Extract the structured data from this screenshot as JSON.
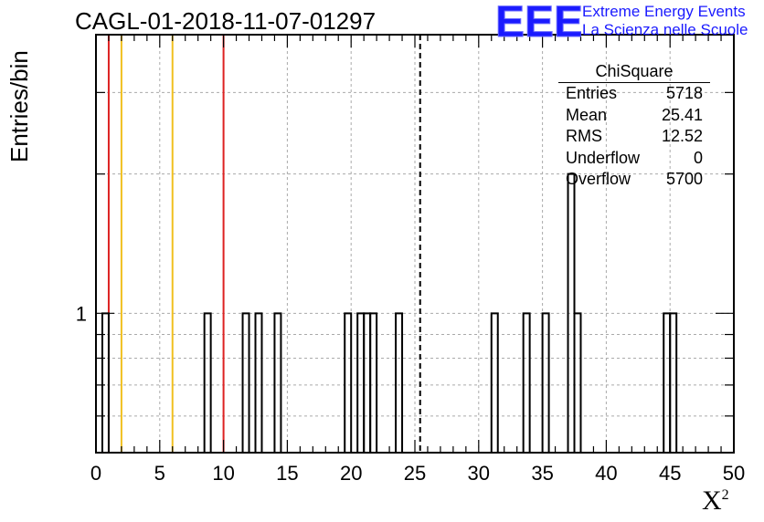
{
  "header": {
    "title": "CAGL-01-2018-11-07-01297",
    "logo_mark": "EEE",
    "logo_line1": "Extreme Energy Events",
    "logo_line2": "La Scienza nelle Scuole"
  },
  "stats": {
    "name": "ChiSquare",
    "rows": [
      {
        "label": "Entries",
        "value": "5718"
      },
      {
        "label": "Mean",
        "value": "25.41"
      },
      {
        "label": "RMS",
        "value": "12.52"
      },
      {
        "label": "Underflow",
        "value": "0"
      },
      {
        "label": "Overflow",
        "value": "5700"
      }
    ]
  },
  "chart_data": {
    "type": "histogram",
    "title": "CAGL-01-2018-11-07-01297",
    "xlabel": "X",
    "xlabel_sup": "2",
    "ylabel": "Entries/bin",
    "xlim": [
      0,
      50
    ],
    "ylim": [
      0.5,
      4
    ],
    "log_y": true,
    "grid": true,
    "x_ticks": [
      0,
      5,
      10,
      15,
      20,
      25,
      30,
      35,
      40,
      45,
      50
    ],
    "y_tick_labels": [
      {
        "value": 1,
        "label": "1"
      }
    ],
    "bin_width": 0.5,
    "bins": [
      {
        "x": 0.5,
        "count": 1
      },
      {
        "x": 8.5,
        "count": 1
      },
      {
        "x": 11.5,
        "count": 1
      },
      {
        "x": 12.5,
        "count": 1
      },
      {
        "x": 14.0,
        "count": 1
      },
      {
        "x": 19.5,
        "count": 1
      },
      {
        "x": 20.5,
        "count": 1
      },
      {
        "x": 21.0,
        "count": 1
      },
      {
        "x": 21.5,
        "count": 1
      },
      {
        "x": 23.5,
        "count": 1
      },
      {
        "x": 31.0,
        "count": 1
      },
      {
        "x": 33.5,
        "count": 1
      },
      {
        "x": 35.0,
        "count": 1
      },
      {
        "x": 37.0,
        "count": 2
      },
      {
        "x": 37.5,
        "count": 1
      },
      {
        "x": 44.5,
        "count": 1
      },
      {
        "x": 45.0,
        "count": 1
      }
    ],
    "reference_lines": [
      {
        "x": 1,
        "color": "#dd2222",
        "style": "solid"
      },
      {
        "x": 2,
        "color": "#f0c020",
        "style": "solid"
      },
      {
        "x": 6,
        "color": "#f0c020",
        "style": "solid"
      },
      {
        "x": 10,
        "color": "#dd2222",
        "style": "solid"
      },
      {
        "x": 25.41,
        "color": "#000000",
        "style": "dashed"
      }
    ]
  }
}
